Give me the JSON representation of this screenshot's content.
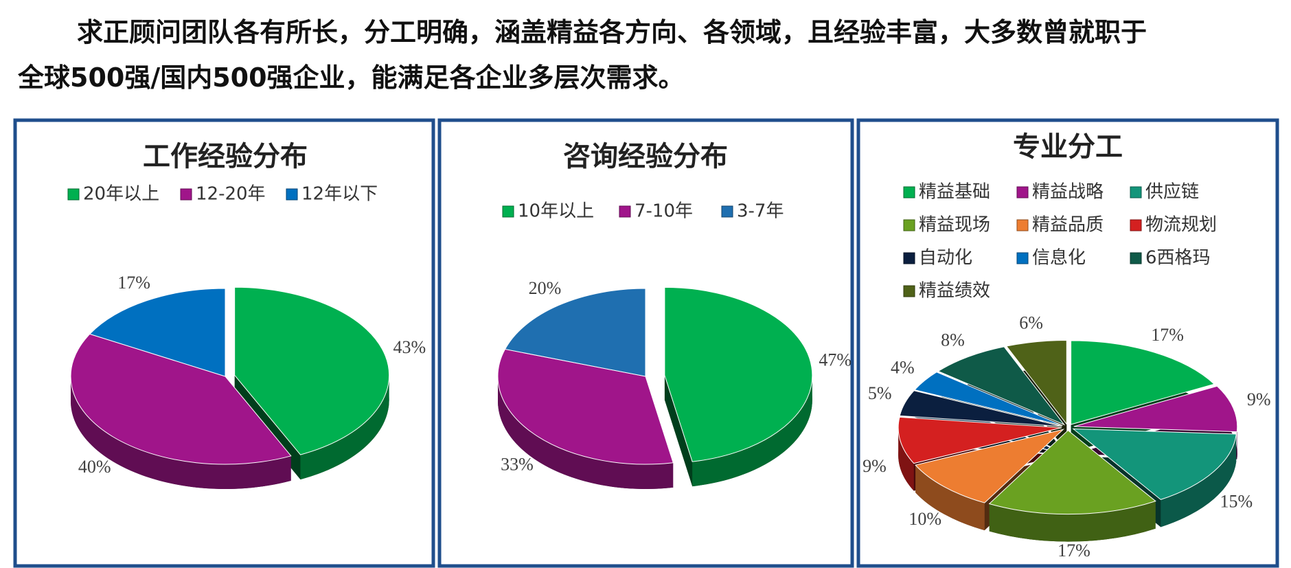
{
  "paragraph": [
    "求正顾问团队各有所长，分工明确，涵盖精益各方向、各领域，且经验丰富，大多数曾就职于",
    "全球500强/国内500强企业，能满足各企业多层次需求。"
  ],
  "chart_data": [
    {
      "type": "pie",
      "title": "工作经验分布",
      "categories": [
        "20年以上",
        "12-20年",
        "12年以下"
      ],
      "values": [
        43,
        40,
        17
      ],
      "value_labels": [
        "43%",
        "40%",
        "17%"
      ],
      "colors": [
        "#00b050",
        "#a0158a",
        "#0070c0"
      ]
    },
    {
      "type": "pie",
      "title": "咨询经验分布",
      "categories": [
        "10年以上",
        "7-10年",
        "3-7年"
      ],
      "values": [
        47,
        33,
        20
      ],
      "value_labels": [
        "47%",
        "33%",
        "20%"
      ],
      "colors": [
        "#00b050",
        "#a0158a",
        "#1f6fb0"
      ]
    },
    {
      "type": "pie",
      "title": "专业分工",
      "categories": [
        "精益基础",
        "精益战略",
        "供应链",
        "精益现场",
        "精益品质",
        "物流规划",
        "自动化",
        "信息化",
        "6西格玛",
        "精益绩效"
      ],
      "values": [
        17,
        9,
        15,
        17,
        10,
        9,
        5,
        4,
        8,
        6
      ],
      "value_labels": [
        "17%",
        "9%",
        "15%",
        "17%",
        "10%",
        "9%",
        "5%",
        "4%",
        "8%",
        "6%"
      ],
      "colors": [
        "#00b050",
        "#a0158a",
        "#13957a",
        "#6aa121",
        "#ed7d31",
        "#d42020",
        "#0b1f3f",
        "#0070c0",
        "#0f5a48",
        "#4f6218"
      ]
    }
  ]
}
